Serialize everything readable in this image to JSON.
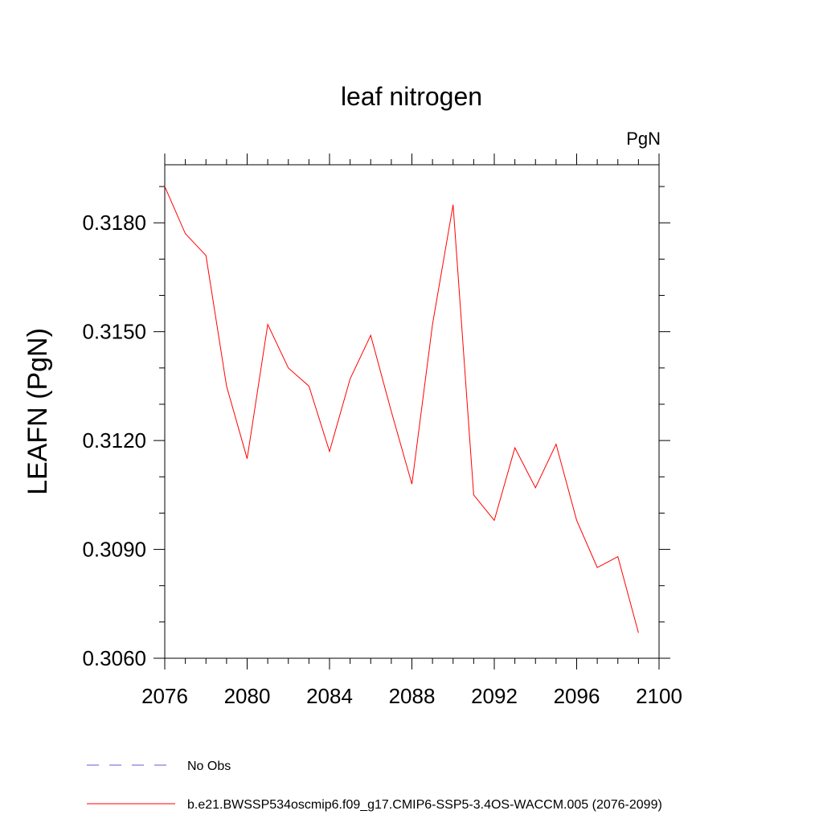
{
  "chart_data": {
    "type": "line",
    "title": "leaf nitrogen",
    "units_label": "PgN",
    "ylabel": "LEAFN  (PgN)",
    "xlabel": "",
    "xlim": [
      2076,
      2100
    ],
    "ylim": [
      0.306,
      0.3196
    ],
    "x_major_ticks": [
      2076,
      2080,
      2084,
      2088,
      2092,
      2096,
      2100
    ],
    "x_tick_labels": [
      "2076",
      "2080",
      "2084",
      "2088",
      "2092",
      "2096",
      "2100"
    ],
    "y_major_ticks": [
      0.306,
      0.309,
      0.312,
      0.315,
      0.318
    ],
    "y_tick_labels": [
      "0.3060",
      "0.3090",
      "0.3120",
      "0.3150",
      "0.3180"
    ],
    "series": [
      {
        "name": "b.e21.BWSSP534oscmip6.f09_g17.CMIP6-SSP5-3.4OS-WACCM.005 (2076-2099)",
        "color": "#ff0000",
        "style": "solid",
        "x": [
          2076,
          2077,
          2078,
          2079,
          2080,
          2081,
          2082,
          2083,
          2084,
          2085,
          2086,
          2087,
          2088,
          2089,
          2090,
          2091,
          2092,
          2093,
          2094,
          2095,
          2096,
          2097,
          2098,
          2099
        ],
        "values": [
          0.319,
          0.3177,
          0.3171,
          0.3135,
          0.3115,
          0.3152,
          0.314,
          0.3135,
          0.3117,
          0.3137,
          0.3149,
          0.3128,
          0.3108,
          0.3152,
          0.3185,
          0.3105,
          0.3098,
          0.3118,
          0.3107,
          0.3119,
          0.3098,
          0.3085,
          0.3088,
          0.3067
        ]
      }
    ],
    "legend": [
      {
        "label": "No Obs",
        "color": "#6a5acd",
        "style": "dashed"
      },
      {
        "label": "b.e21.BWSSP534oscmip6.f09_g17.CMIP6-SSP5-3.4OS-WACCM.005 (2076-2099)",
        "color": "#ff0000",
        "style": "solid"
      }
    ],
    "legend_position": "bottom-left"
  }
}
